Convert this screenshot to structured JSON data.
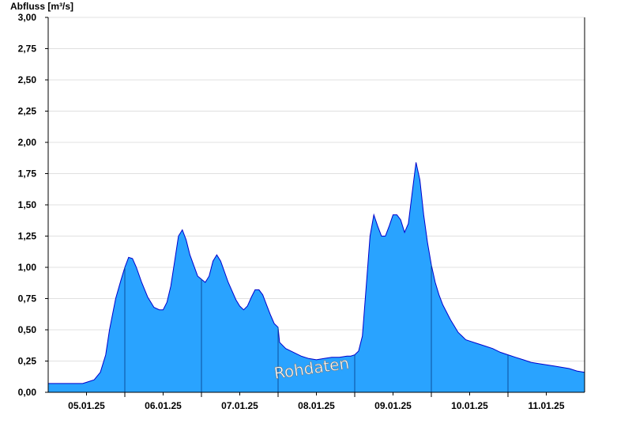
{
  "chart_data": {
    "type": "area",
    "title": "",
    "ylabel": "Abfluss [m³/s]",
    "xlabel": "",
    "ylim": [
      0,
      3.0
    ],
    "yticks": [
      "0,00",
      "0,25",
      "0,50",
      "0,75",
      "1,00",
      "1,25",
      "1,50",
      "1,75",
      "2,00",
      "2,25",
      "2,50",
      "2,75",
      "3,00"
    ],
    "xlim_days": [
      4.5,
      11.5
    ],
    "xticks": [
      {
        "label": "05.01.25",
        "day": 5
      },
      {
        "label": "06.01.25",
        "day": 6
      },
      {
        "label": "07.01.25",
        "day": 7
      },
      {
        "label": "08.01.25",
        "day": 8
      },
      {
        "label": "09.01.25",
        "day": 9
      },
      {
        "label": "10.01.25",
        "day": 10
      },
      {
        "label": "11.01.25",
        "day": 11
      }
    ],
    "day_separators": [
      5.5,
      6.5,
      7.5,
      8.5,
      9.5,
      10.5
    ],
    "grid": "horizontal",
    "annotation": "Rohdaten",
    "colors": {
      "fill": "#29a3ff",
      "line": "#0000cc",
      "grid": "#e0e0e0",
      "axis": "#000000"
    },
    "series": [
      {
        "x": [
          4.5,
          4.6,
          4.8,
          4.95,
          5.0,
          5.1,
          5.18,
          5.25,
          5.3,
          5.38,
          5.45,
          5.5,
          5.55,
          5.6,
          5.65,
          5.72,
          5.8,
          5.88,
          5.95,
          6.0,
          6.05,
          6.1,
          6.15,
          6.2,
          6.25,
          6.3,
          6.35,
          6.45,
          6.55,
          6.6,
          6.65,
          6.7,
          6.75,
          6.85,
          6.95,
          7.0,
          7.05,
          7.1,
          7.15,
          7.2,
          7.25,
          7.3,
          7.35,
          7.4,
          7.45,
          7.5,
          7.52,
          7.6,
          7.7,
          7.8,
          7.9,
          8.0,
          8.1,
          8.2,
          8.3,
          8.4,
          8.45,
          8.5,
          8.55,
          8.6,
          8.65,
          8.7,
          8.75,
          8.8,
          8.85,
          8.9,
          8.95,
          9.0,
          9.05,
          9.1,
          9.15,
          9.2,
          9.25,
          9.3,
          9.35,
          9.4,
          9.45,
          9.5,
          9.55,
          9.6,
          9.65,
          9.7,
          9.75,
          9.8,
          9.85,
          9.9,
          9.95,
          10.0,
          10.1,
          10.2,
          10.3,
          10.4,
          10.5,
          10.6,
          10.7,
          10.8,
          10.9,
          11.0,
          11.1,
          11.2,
          11.3,
          11.4,
          11.5
        ],
        "y": [
          0.07,
          0.07,
          0.07,
          0.07,
          0.08,
          0.1,
          0.16,
          0.3,
          0.5,
          0.75,
          0.9,
          1.0,
          1.08,
          1.07,
          1.0,
          0.88,
          0.76,
          0.68,
          0.66,
          0.66,
          0.72,
          0.85,
          1.05,
          1.25,
          1.3,
          1.22,
          1.1,
          0.93,
          0.88,
          0.93,
          1.05,
          1.1,
          1.05,
          0.88,
          0.74,
          0.69,
          0.66,
          0.69,
          0.76,
          0.82,
          0.82,
          0.78,
          0.7,
          0.62,
          0.55,
          0.52,
          0.4,
          0.35,
          0.32,
          0.29,
          0.27,
          0.26,
          0.27,
          0.28,
          0.28,
          0.29,
          0.29,
          0.3,
          0.33,
          0.45,
          0.85,
          1.25,
          1.42,
          1.33,
          1.25,
          1.25,
          1.33,
          1.42,
          1.42,
          1.38,
          1.28,
          1.35,
          1.6,
          1.84,
          1.7,
          1.42,
          1.2,
          1.02,
          0.88,
          0.78,
          0.7,
          0.64,
          0.58,
          0.53,
          0.48,
          0.45,
          0.42,
          0.41,
          0.39,
          0.37,
          0.35,
          0.32,
          0.3,
          0.28,
          0.26,
          0.24,
          0.23,
          0.22,
          0.21,
          0.2,
          0.19,
          0.17,
          0.16
        ]
      }
    ]
  }
}
